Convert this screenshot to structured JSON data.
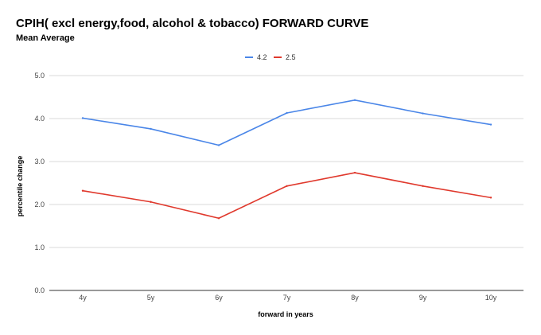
{
  "chart_data": {
    "type": "line",
    "title": "CPIH( excl energy,food, alcohol & tobacco) FORWARD CURVE",
    "subtitle": "Mean Average",
    "xlabel": "forward in years",
    "ylabel": "percentile change",
    "categories": [
      "4y",
      "5y",
      "6y",
      "7y",
      "8y",
      "9y",
      "10y"
    ],
    "ylim": [
      0,
      5
    ],
    "yticks": [
      "0.0",
      "1.0",
      "2.0",
      "3.0",
      "4.0",
      "5.0"
    ],
    "grid": true,
    "legend_position": "top-center",
    "series": [
      {
        "name": "4.2",
        "color": "#4a86e8",
        "values": [
          4.01,
          3.76,
          3.38,
          4.13,
          4.43,
          4.12,
          3.86
        ]
      },
      {
        "name": "2.5",
        "color": "#e0392d",
        "values": [
          2.32,
          2.06,
          1.68,
          2.43,
          2.74,
          2.43,
          2.16
        ]
      }
    ]
  }
}
